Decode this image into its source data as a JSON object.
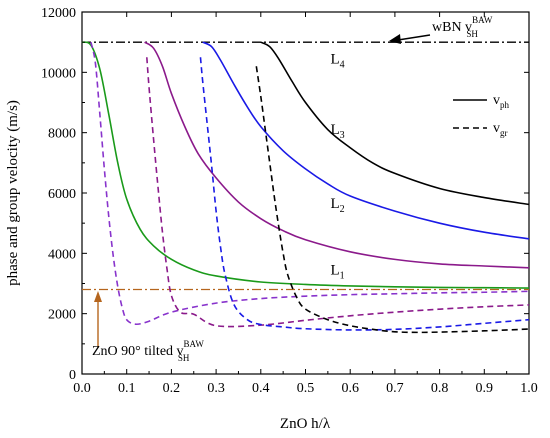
{
  "chart_data": {
    "type": "line",
    "xlabel": "ZnO h/λ",
    "ylabel": "phase and group velocity (m/s)",
    "xlim": [
      0.0,
      1.0
    ],
    "ylim": [
      0,
      12000
    ],
    "x_ticks": [
      "0.0",
      "0.1",
      "0.2",
      "0.3",
      "0.4",
      "0.5",
      "0.6",
      "0.7",
      "0.8",
      "0.9",
      "1.0"
    ],
    "y_ticks": [
      "0",
      "2000",
      "4000",
      "6000",
      "8000",
      "10000",
      "12000"
    ],
    "grid": false,
    "legend": {
      "position": "top-right",
      "entries": [
        {
          "main": "v",
          "sub": "ph",
          "style": "solid"
        },
        {
          "main": "v",
          "sub": "gr",
          "style": "dashed"
        }
      ]
    },
    "reference_lines": [
      {
        "main": "wBN v",
        "sup": "BAW",
        "sub": "SH",
        "y": 11000,
        "color": "#000000",
        "style": "dash-dot"
      },
      {
        "main": "ZnO 90° tilted v",
        "sup": "BAW",
        "sub": "SH",
        "y": 2800,
        "color": "#b5651d",
        "style": "dash-dot"
      }
    ],
    "series": [
      {
        "name": "L1",
        "kind": "vph",
        "color": "#1a9a1a",
        "x": [
          0.0,
          0.02,
          0.04,
          0.06,
          0.08,
          0.1,
          0.13,
          0.16,
          0.2,
          0.25,
          0.3,
          0.4,
          0.5,
          0.6,
          0.7,
          0.8,
          0.9,
          1.0
        ],
        "y": [
          11000,
          10900,
          10100,
          8600,
          7000,
          5800,
          4800,
          4250,
          3800,
          3450,
          3250,
          3050,
          2970,
          2920,
          2890,
          2870,
          2860,
          2850
        ]
      },
      {
        "name": "L2",
        "kind": "vph",
        "color": "#8b1a8b",
        "x": [
          0.14,
          0.16,
          0.18,
          0.2,
          0.23,
          0.26,
          0.3,
          0.35,
          0.4,
          0.45,
          0.5,
          0.6,
          0.7,
          0.8,
          0.9,
          1.0
        ],
        "y": [
          11000,
          10800,
          10200,
          9300,
          8200,
          7300,
          6500,
          5700,
          5150,
          4750,
          4450,
          4050,
          3800,
          3650,
          3580,
          3520
        ]
      },
      {
        "name": "L3",
        "kind": "vph",
        "color": "#1a1ae6",
        "x": [
          0.27,
          0.29,
          0.31,
          0.34,
          0.37,
          0.4,
          0.45,
          0.5,
          0.55,
          0.6,
          0.7,
          0.8,
          0.9,
          1.0
        ],
        "y": [
          11000,
          10850,
          10400,
          9600,
          8850,
          8200,
          7400,
          6800,
          6300,
          5900,
          5400,
          5000,
          4700,
          4480
        ]
      },
      {
        "name": "L4",
        "kind": "vph",
        "color": "#000000",
        "x": [
          0.4,
          0.42,
          0.44,
          0.47,
          0.5,
          0.55,
          0.6,
          0.65,
          0.7,
          0.8,
          0.9,
          1.0
        ],
        "y": [
          11000,
          10850,
          10450,
          9700,
          9000,
          8100,
          7500,
          7000,
          6650,
          6150,
          5850,
          5620
        ]
      },
      {
        "name": "L1",
        "kind": "vgr",
        "color": "#8833cc",
        "x": [
          0.02,
          0.03,
          0.04,
          0.05,
          0.06,
          0.07,
          0.08,
          0.09,
          0.1,
          0.12,
          0.15,
          0.2,
          0.3,
          0.4,
          0.5,
          0.6,
          0.7,
          0.8,
          0.9,
          1.0
        ],
        "y": [
          11000,
          10300,
          8600,
          6800,
          5200,
          3900,
          2900,
          2200,
          1800,
          1650,
          1750,
          2050,
          2350,
          2500,
          2580,
          2630,
          2660,
          2690,
          2710,
          2740
        ]
      },
      {
        "name": "L2",
        "kind": "vgr",
        "color": "#8b1a8b",
        "x": [
          0.145,
          0.15,
          0.16,
          0.17,
          0.18,
          0.19,
          0.2,
          0.22,
          0.25,
          0.3,
          0.4,
          0.5,
          0.6,
          0.7,
          0.8,
          0.9,
          1.0
        ],
        "y": [
          10500,
          9500,
          7800,
          6200,
          4700,
          3500,
          2600,
          2050,
          1980,
          1600,
          1620,
          1780,
          1930,
          2050,
          2150,
          2230,
          2290
        ]
      },
      {
        "name": "L3",
        "kind": "vgr",
        "color": "#1a1ae6",
        "x": [
          0.265,
          0.27,
          0.28,
          0.29,
          0.3,
          0.31,
          0.32,
          0.34,
          0.37,
          0.4,
          0.45,
          0.5,
          0.6,
          0.7,
          0.8,
          0.9,
          1.0
        ],
        "y": [
          10500,
          9700,
          8300,
          6900,
          5400,
          4200,
          3300,
          2300,
          1800,
          1640,
          1560,
          1500,
          1460,
          1480,
          1560,
          1680,
          1800
        ]
      },
      {
        "name": "L4",
        "kind": "vgr",
        "color": "#000000",
        "x": [
          0.39,
          0.4,
          0.41,
          0.42,
          0.43,
          0.44,
          0.45,
          0.46,
          0.48,
          0.5,
          0.55,
          0.6,
          0.65,
          0.7,
          0.75,
          0.8,
          0.9,
          1.0
        ],
        "y": [
          10200,
          9200,
          8100,
          7000,
          5900,
          4900,
          4000,
          3300,
          2550,
          2150,
          1800,
          1600,
          1480,
          1400,
          1380,
          1390,
          1430,
          1490
        ]
      }
    ],
    "curve_labels": [
      {
        "main": "L",
        "sub": "1",
        "x": 0.52,
        "y": 3300
      },
      {
        "main": "L",
        "sub": "2",
        "x": 0.52,
        "y": 5500
      },
      {
        "main": "L",
        "sub": "3",
        "x": 0.52,
        "y": 7950
      },
      {
        "main": "L",
        "sub": "4",
        "x": 0.52,
        "y": 10300
      }
    ]
  }
}
